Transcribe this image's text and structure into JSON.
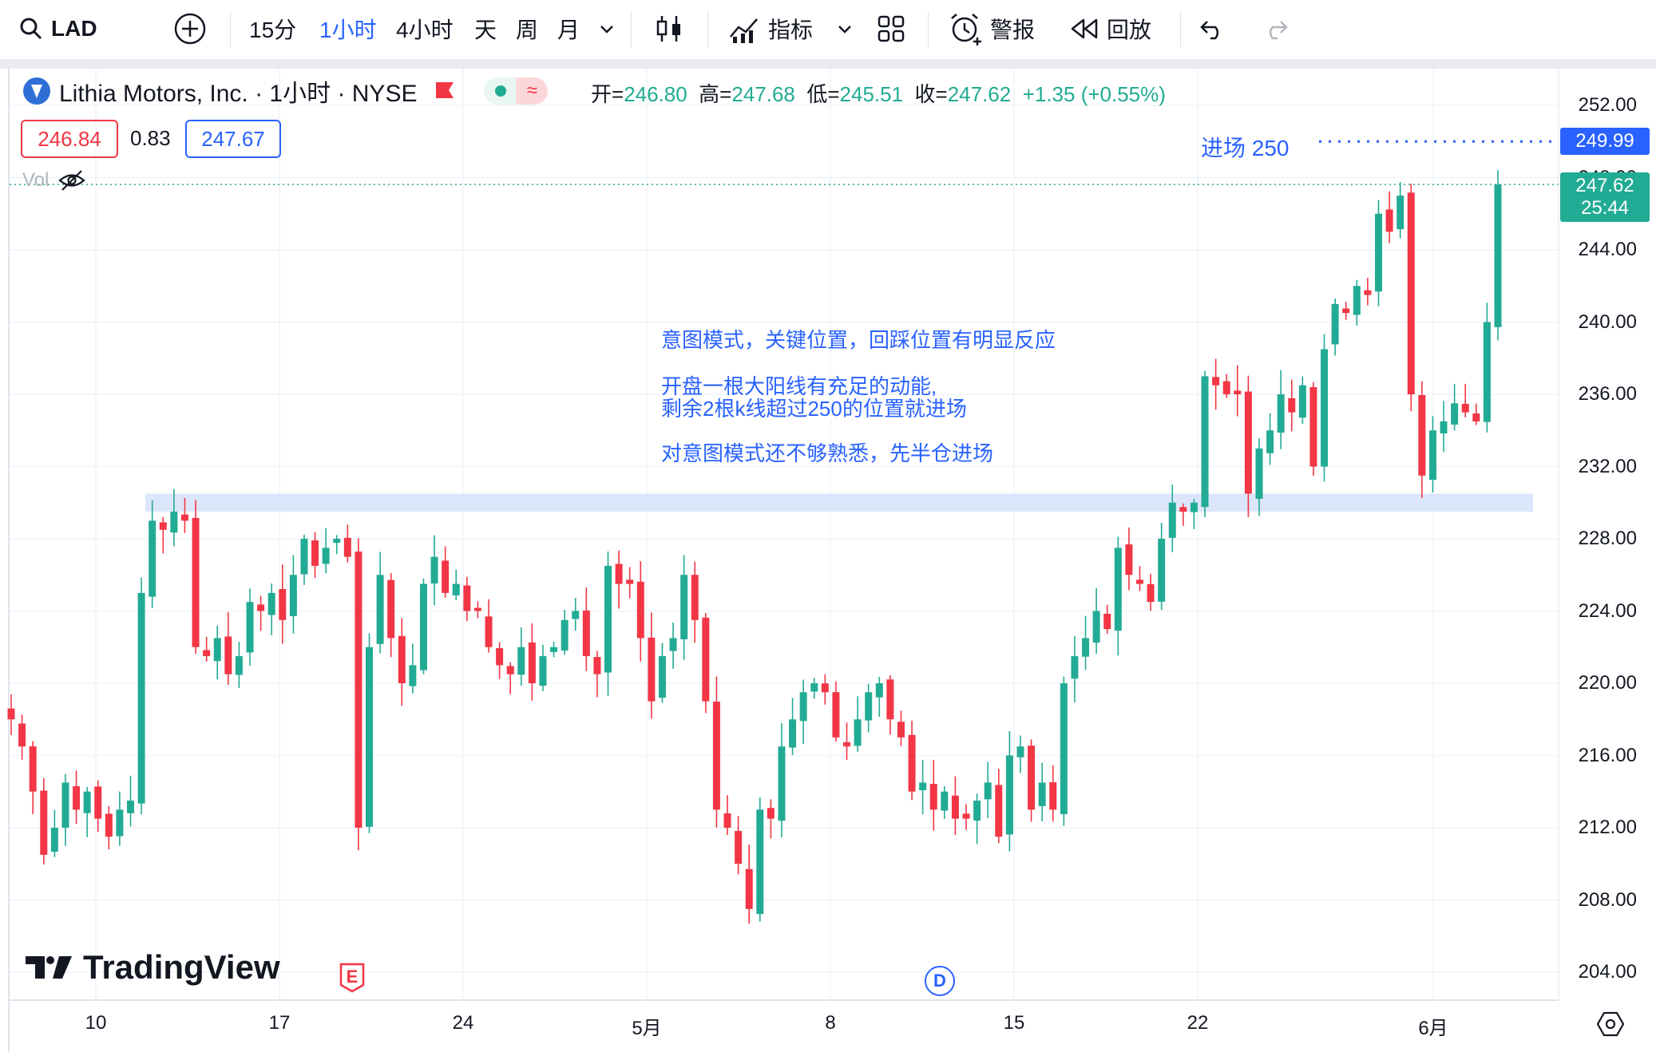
{
  "toolbar": {
    "symbol": "LAD",
    "intervals": [
      "15分",
      "1小时",
      "4小时",
      "天",
      "周",
      "月"
    ],
    "active_interval": "1小时",
    "indicators_label": "指标",
    "alert_label": "警报",
    "replay_label": "回放"
  },
  "legend": {
    "title": "Lithia Motors, Inc. · 1小时 · NYSE",
    "open_label": "开=",
    "open": "246.80",
    "high_label": "高=",
    "high": "247.68",
    "low_label": "低=",
    "low": "245.51",
    "close_label": "收=",
    "close": "247.62",
    "change": "+1.35 (+0.55%)",
    "bid": "246.84",
    "spread": "0.83",
    "ask": "247.67",
    "vol_label": "Vol"
  },
  "annotations": {
    "entry_label": "进场 250",
    "note_line1": "意图模式，关键位置，回踩位置有明显反应",
    "note_line2": "开盘一根大阳线有充足的动能,",
    "note_line3": "剩余2根k线超过250的位置就进场",
    "note_line4": "对意图模式还不够熟悉，先半仓进场"
  },
  "price_tags": {
    "entry_price": "249.99",
    "last_price": "247.62",
    "countdown": "25:44"
  },
  "markers": {
    "earnings": "E",
    "dividend": "D"
  },
  "watermark": "TradingView",
  "colors": {
    "up": "#22ab94",
    "down": "#f23645",
    "accent": "#2962ff",
    "zone": "#dce6fa"
  },
  "chart_data": {
    "type": "candlestick",
    "y_ticks": [
      "252.00",
      "248.00",
      "244.00",
      "240.00",
      "236.00",
      "232.00",
      "228.00",
      "224.00",
      "220.00",
      "216.00",
      "212.00",
      "208.00",
      "204.00"
    ],
    "x_ticks": [
      "10",
      "17",
      "24",
      "5月",
      "8",
      "15",
      "22",
      "6月"
    ],
    "ylim": [
      202.5,
      254.5
    ],
    "key_zone": [
      229.5,
      230.5
    ],
    "entry_level": 250,
    "last_close": 247.62,
    "closes": [
      218.0,
      216.5,
      214.0,
      210.5,
      212.0,
      214.5,
      213.0,
      214.0,
      212.5,
      211.5,
      213.0,
      213.5,
      225.0,
      229.0,
      228.5,
      229.5,
      229.0,
      222.0,
      221.5,
      222.5,
      220.5,
      221.5,
      224.5,
      224.0,
      225.0,
      223.5,
      226.0,
      228.0,
      226.5,
      227.5,
      228.0,
      227.0,
      212.0,
      222.0,
      226.0,
      222.5,
      220.0,
      221.0,
      225.5,
      227.0,
      225.0,
      225.5,
      224.0,
      224.0,
      222.0,
      221.0,
      220.5,
      222.0,
      220.0,
      221.5,
      222.0,
      223.5,
      224.0,
      221.5,
      220.5,
      226.5,
      225.5,
      225.5,
      222.5,
      219.0,
      221.5,
      222.5,
      226.0,
      223.5,
      219.0,
      213.0,
      212.0,
      210.0,
      207.5,
      213.0,
      212.5,
      216.5,
      218.0,
      219.5,
      220.0,
      219.5,
      217.0,
      216.5,
      218.0,
      219.5,
      220.0,
      218.0,
      217.0,
      214.0,
      214.5,
      213.0,
      214.0,
      212.5,
      212.5,
      213.5,
      214.5,
      211.5,
      216.0,
      216.5,
      213.0,
      214.5,
      213.0,
      220.0,
      221.5,
      222.5,
      224.0,
      223.0,
      227.5,
      226.0,
      225.5,
      224.5,
      228.0,
      230.0,
      229.5,
      230.0,
      237.0,
      236.5,
      236.0,
      236.0,
      230.5,
      233.0,
      234.0,
      236.0,
      235.0,
      236.5,
      232.0,
      238.5,
      241.0,
      240.5,
      242.0,
      241.5,
      246.0,
      245.0,
      247.0,
      236.0,
      231.5,
      234.0,
      234.5,
      235.5,
      235.0,
      234.5,
      240.0,
      247.62
    ]
  }
}
